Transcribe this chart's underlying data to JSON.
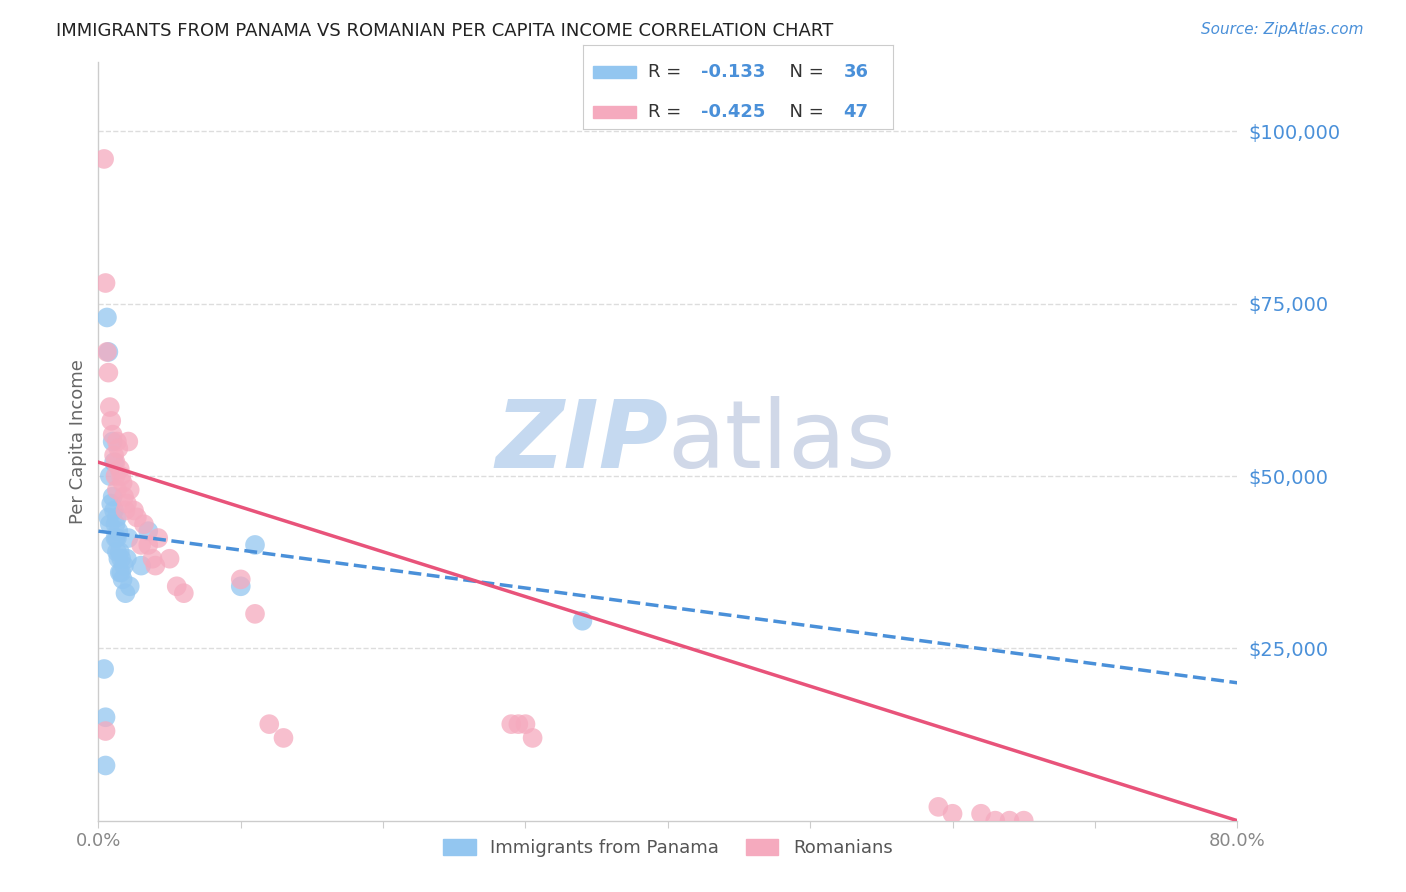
{
  "title": "IMMIGRANTS FROM PANAMA VS ROMANIAN PER CAPITA INCOME CORRELATION CHART",
  "source": "Source: ZipAtlas.com",
  "ylabel": "Per Capita Income",
  "ytick_labels": [
    "$25,000",
    "$50,000",
    "$75,000",
    "$100,000"
  ],
  "ytick_values": [
    25000,
    50000,
    75000,
    100000
  ],
  "ymin": 0,
  "ymax": 110000,
  "xmin": 0.0,
  "xmax": 0.8,
  "label_panama": "Immigrants from Panama",
  "label_romanians": "Romanians",
  "blue_color": "#93C6F0",
  "pink_color": "#F5AABE",
  "blue_line_color": "#4A90D9",
  "pink_line_color": "#E8537A",
  "title_color": "#222222",
  "source_color": "#4A90D9",
  "axis_label_color": "#4A90D9",
  "tick_color": "#888888",
  "watermark_zip_color": "#C5D9F0",
  "watermark_atlas_color": "#D0D8E8",
  "grid_color": "#DDDDDD",
  "background_color": "#FFFFFF",
  "legend_r1": "-0.133",
  "legend_n1": "36",
  "legend_r2": "-0.425",
  "legend_n2": "47",
  "blue_scatter_x": [
    0.004,
    0.005,
    0.006,
    0.007,
    0.007,
    0.008,
    0.008,
    0.009,
    0.009,
    0.01,
    0.01,
    0.011,
    0.011,
    0.012,
    0.012,
    0.013,
    0.013,
    0.013,
    0.014,
    0.014,
    0.015,
    0.015,
    0.016,
    0.016,
    0.017,
    0.018,
    0.019,
    0.02,
    0.021,
    0.022,
    0.03,
    0.035,
    0.1,
    0.11,
    0.34,
    0.005
  ],
  "blue_scatter_y": [
    22000,
    15000,
    73000,
    68000,
    44000,
    43000,
    50000,
    40000,
    46000,
    47000,
    55000,
    52000,
    45000,
    41000,
    43000,
    44000,
    41000,
    39000,
    38000,
    42000,
    36000,
    39000,
    36000,
    38000,
    35000,
    37000,
    33000,
    38000,
    41000,
    34000,
    37000,
    42000,
    34000,
    40000,
    29000,
    8000
  ],
  "pink_scatter_x": [
    0.004,
    0.005,
    0.006,
    0.007,
    0.008,
    0.009,
    0.01,
    0.011,
    0.012,
    0.012,
    0.013,
    0.013,
    0.014,
    0.015,
    0.016,
    0.017,
    0.018,
    0.019,
    0.02,
    0.021,
    0.022,
    0.025,
    0.027,
    0.03,
    0.032,
    0.035,
    0.038,
    0.04,
    0.042,
    0.05,
    0.055,
    0.06,
    0.1,
    0.11,
    0.12,
    0.13,
    0.29,
    0.295,
    0.3,
    0.305,
    0.59,
    0.6,
    0.62,
    0.63,
    0.64,
    0.65,
    0.005
  ],
  "pink_scatter_y": [
    96000,
    78000,
    68000,
    65000,
    60000,
    58000,
    56000,
    53000,
    50000,
    52000,
    55000,
    48000,
    54000,
    51000,
    50000,
    49000,
    47000,
    45000,
    46000,
    55000,
    48000,
    45000,
    44000,
    40000,
    43000,
    40000,
    38000,
    37000,
    41000,
    38000,
    34000,
    33000,
    35000,
    30000,
    14000,
    12000,
    14000,
    14000,
    14000,
    12000,
    2000,
    1000,
    1000,
    0,
    0,
    0,
    13000
  ]
}
